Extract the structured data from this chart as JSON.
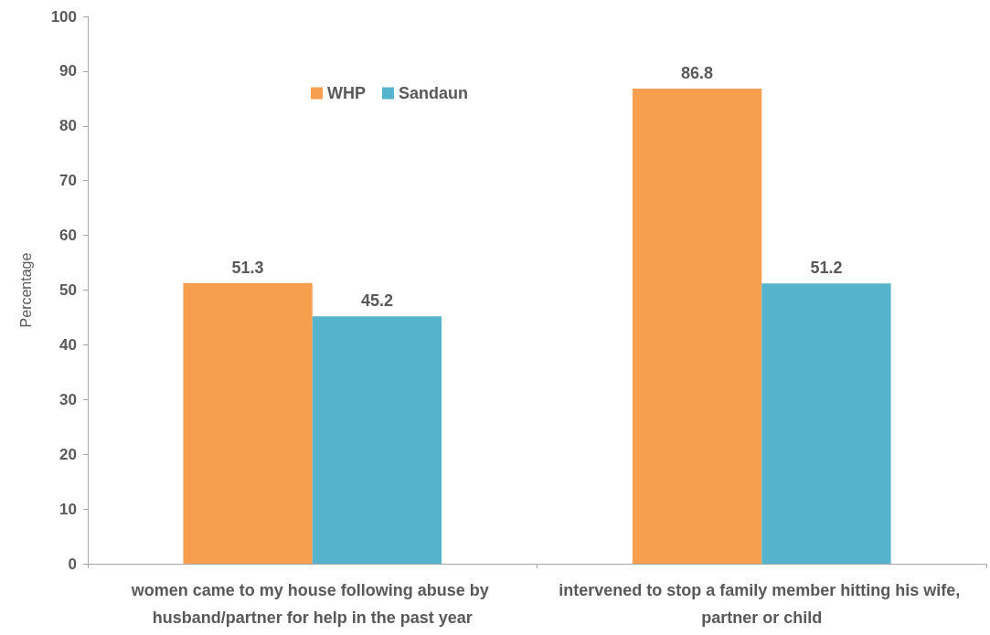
{
  "chart_data": {
    "type": "bar",
    "ylabel": "Percentage",
    "categories": [
      "women came to my house following abuse by husband/partner for help in the past year",
      "intervened to stop a family member hitting his wife, partner or child"
    ],
    "series": [
      {
        "name": "WHP",
        "color": "#f79f4f",
        "values": [
          51.3,
          86.8
        ]
      },
      {
        "name": "Sandaun",
        "color": "#56b3cc",
        "values": [
          45.2,
          51.2
        ]
      }
    ],
    "ylim": [
      0,
      100
    ],
    "yticks": [
      0,
      10,
      20,
      30,
      40,
      50,
      60,
      70,
      80,
      90,
      100
    ],
    "grid": false,
    "legend": "top",
    "data_labels": true
  }
}
